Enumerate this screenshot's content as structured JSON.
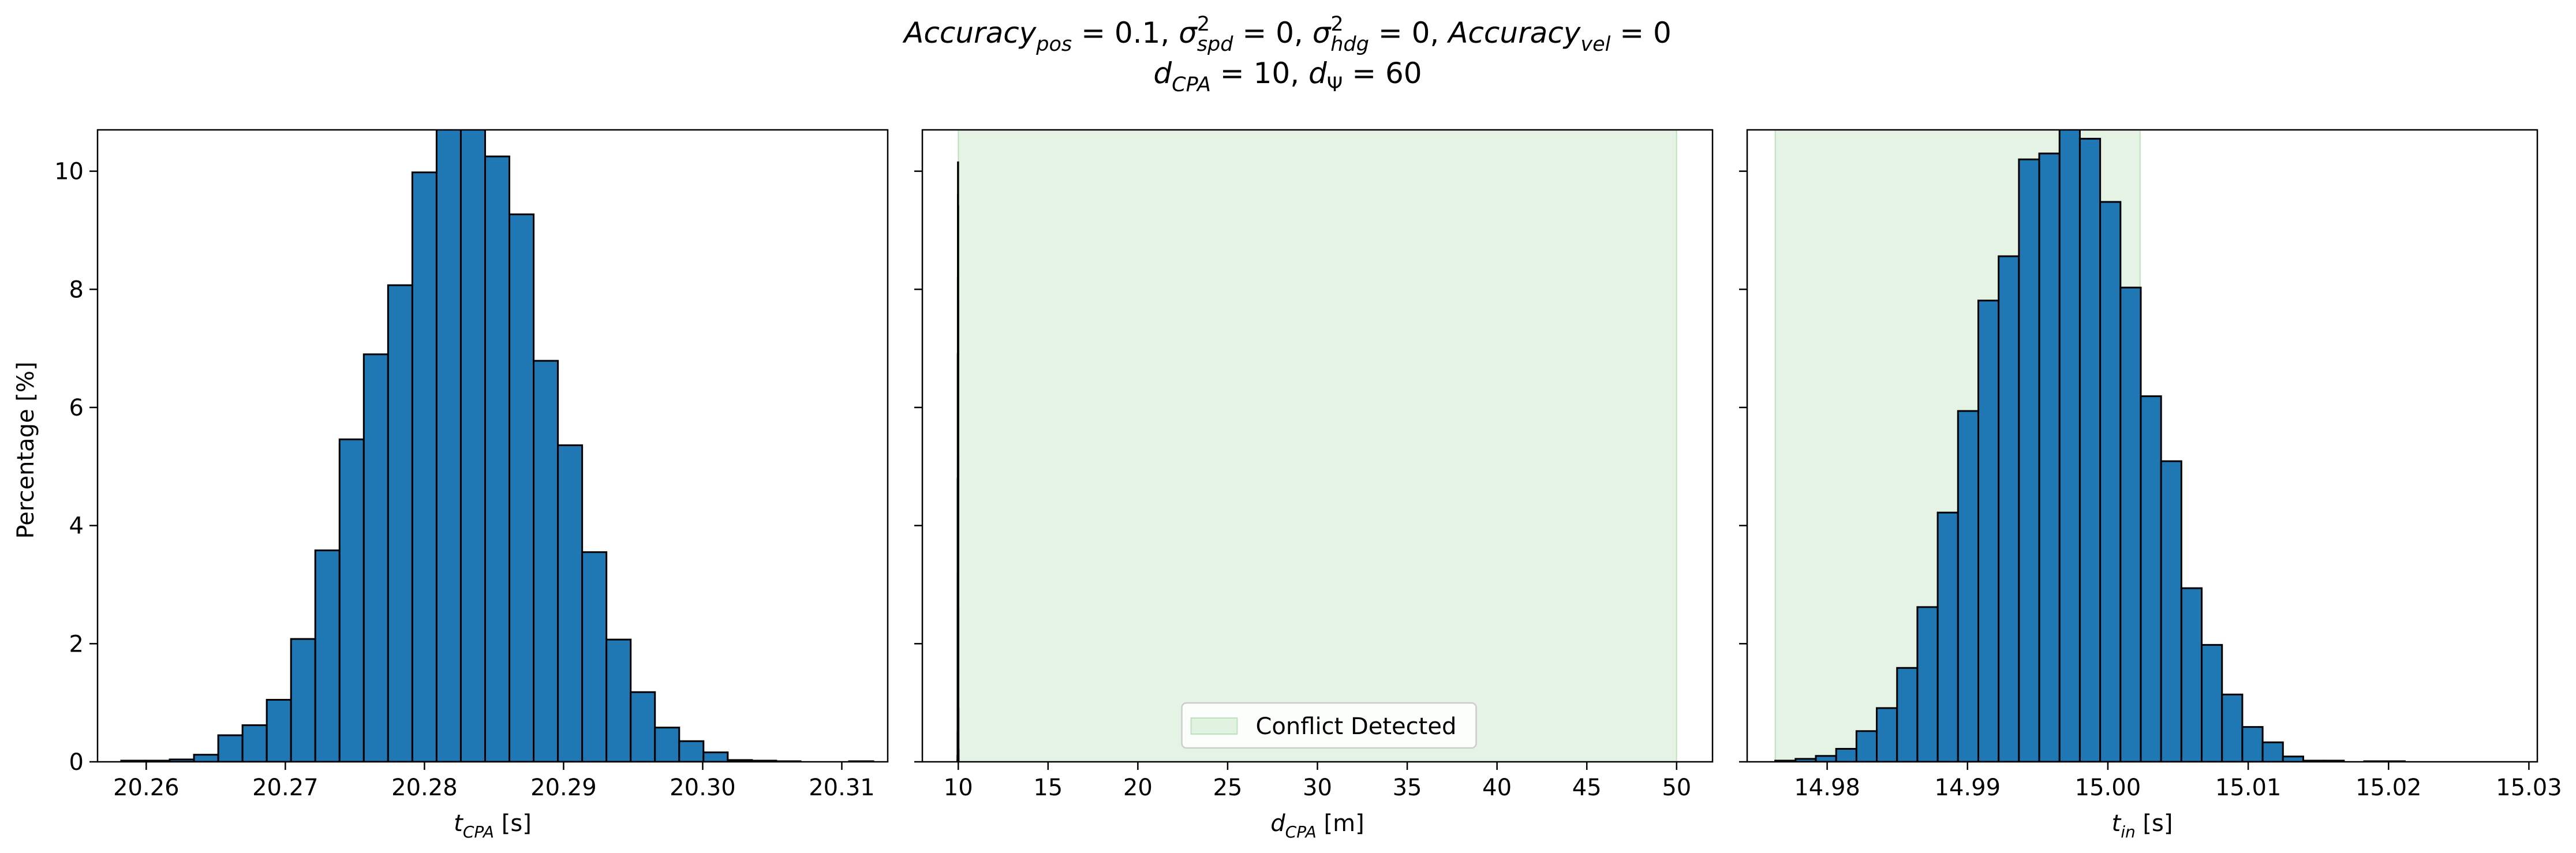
{
  "figure": {
    "title_line1": "Accuracy_pos = 0.1, σ²_spd = 0, σ²_hdg = 0, Accuracy_vel = 0",
    "title_line2": "d_CPA = 10, d_Ψ = 60",
    "title_parts_line1": [
      {
        "t": "Accuracy",
        "it": true
      },
      {
        "t": "pos",
        "sub": true,
        "it": true
      },
      {
        "t": " = 0.1, "
      },
      {
        "t": "σ",
        "it": true
      },
      {
        "t": "2",
        "sup": true
      },
      {
        "t": "spd",
        "sub": true,
        "it": true,
        "back": true
      },
      {
        "t": " = 0, "
      },
      {
        "t": "σ",
        "it": true
      },
      {
        "t": "2",
        "sup": true
      },
      {
        "t": "hdg",
        "sub": true,
        "it": true,
        "back": true
      },
      {
        "t": " = 0, "
      },
      {
        "t": "Accuracy",
        "it": true
      },
      {
        "t": "vel",
        "sub": true,
        "it": true
      },
      {
        "t": " = 0"
      }
    ],
    "title_parts_line2": [
      {
        "t": "d",
        "it": true
      },
      {
        "t": "CPA",
        "sub": true,
        "it": true
      },
      {
        "t": " = 10, "
      },
      {
        "t": "d",
        "it": true
      },
      {
        "t": "Ψ",
        "sub": true
      },
      {
        "t": " = 60"
      }
    ],
    "shared_ylabel": "Percentage [%]",
    "colors": {
      "bar_fill": "#1f77b4",
      "bar_edge": "#000000",
      "shade": "#2ca02c",
      "shade_opacity": 0.12
    }
  },
  "chart_data": [
    {
      "type": "bar",
      "xlabel_parts": [
        {
          "t": "t",
          "it": true
        },
        {
          "t": "CPA",
          "sub": true,
          "it": true
        },
        {
          "t": " [s]"
        }
      ],
      "xlim": [
        20.2565,
        20.3133
      ],
      "ylim": [
        0,
        10.7
      ],
      "xticks": [
        20.26,
        20.27,
        20.28,
        20.29,
        20.3,
        20.31
      ],
      "xtick_labels": [
        "20.26",
        "20.27",
        "20.28",
        "20.29",
        "20.30",
        "20.31"
      ],
      "yticks": [
        0,
        2,
        4,
        6,
        8,
        10
      ],
      "ytick_labels": [
        "0",
        "2",
        "4",
        "6",
        "8",
        "10"
      ],
      "bin_start": 20.2582,
      "bin_width": 0.001744,
      "values": [
        0.02,
        0.02,
        0.04,
        0.12,
        0.45,
        0.62,
        1.05,
        2.08,
        3.58,
        5.46,
        6.9,
        8.07,
        9.98,
        10.85,
        10.9,
        10.25,
        9.27,
        6.79,
        5.36,
        3.55,
        2.07,
        1.18,
        0.58,
        0.35,
        0.16,
        0.03,
        0.02,
        0.01,
        0.0,
        0.0,
        0.01
      ],
      "grid": false
    },
    {
      "type": "bar",
      "xlabel_parts": [
        {
          "t": "d",
          "it": true
        },
        {
          "t": "CPA",
          "sub": true,
          "it": true
        },
        {
          "t": " [m]"
        }
      ],
      "xlim": [
        8.0,
        52.0
      ],
      "ylim": [
        0,
        10.7
      ],
      "xticks": [
        10,
        15,
        20,
        25,
        30,
        35,
        40,
        45,
        50
      ],
      "xtick_labels": [
        "10",
        "15",
        "20",
        "25",
        "30",
        "35",
        "40",
        "45",
        "50"
      ],
      "yticks": [
        0,
        2,
        4,
        6,
        8,
        10
      ],
      "bin_start": 9.95,
      "bin_width": 0.0034,
      "values": [
        0.02,
        0.1,
        0.5,
        1.5,
        3.2,
        4.8,
        6.9,
        8.2,
        9.6,
        10.15,
        9.4,
        7.8,
        5.2,
        2.6,
        0.9,
        0.2
      ],
      "shade": {
        "x0": 10,
        "x1": 50
      },
      "legend": {
        "label": "Conflict Detected",
        "position": "lower center"
      },
      "grid": false
    },
    {
      "type": "bar",
      "xlabel_parts": [
        {
          "t": "t",
          "it": true
        },
        {
          "t": "in",
          "sub": true,
          "it": true
        },
        {
          "t": " [s]"
        }
      ],
      "xlim": [
        14.9743,
        15.0306
      ],
      "ylim": [
        0,
        10.7
      ],
      "xticks": [
        14.98,
        14.99,
        15.0,
        15.01,
        15.02,
        15.03
      ],
      "xtick_labels": [
        "14.98",
        "14.99",
        "15.00",
        "15.01",
        "15.02",
        "15.03"
      ],
      "yticks": [
        0,
        2,
        4,
        6,
        8,
        10
      ],
      "bin_start": 14.9763,
      "bin_width": 0.001447,
      "values": [
        0.02,
        0.05,
        0.1,
        0.22,
        0.52,
        0.91,
        1.59,
        2.62,
        4.22,
        5.94,
        7.81,
        8.56,
        10.2,
        10.3,
        10.75,
        10.55,
        9.48,
        8.03,
        6.19,
        5.09,
        2.94,
        1.98,
        1.14,
        0.59,
        0.33,
        0.09,
        0.02,
        0.02,
        0.0,
        0.01,
        0.01
      ],
      "shade": {
        "x0": 14.9763,
        "x1": 15.0023
      },
      "grid": false
    }
  ]
}
